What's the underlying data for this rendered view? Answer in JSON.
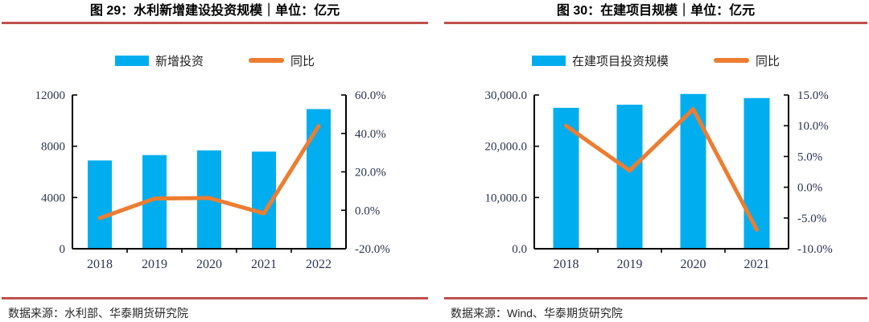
{
  "colors": {
    "bar": "#00AEEF",
    "line": "#ED7D31",
    "rule": "#C0504D",
    "axis": "#000000",
    "tick_label": "#2A3550"
  },
  "chart_data": [
    {
      "type": "bar",
      "title": "图 29：水利新增建设投资规模｜单位：亿元",
      "categories": [
        "2018",
        "2019",
        "2020",
        "2021",
        "2022"
      ],
      "series": [
        {
          "name": "新增投资",
          "type": "bar",
          "axis": "left",
          "values": [
            6890,
            7310,
            7680,
            7580,
            10900
          ]
        },
        {
          "name": "同比",
          "type": "line",
          "axis": "right",
          "values": [
            -4.1,
            6.1,
            6.4,
            -1.6,
            43.8
          ]
        }
      ],
      "left_axis": {
        "min": 0,
        "max": 12000,
        "ticks": [
          "0",
          "4000",
          "8000",
          "12000"
        ]
      },
      "right_axis": {
        "min": -20,
        "max": 60,
        "ticks": [
          "-20.0%",
          "0.0%",
          "20.0%",
          "40.0%",
          "60.0%"
        ]
      },
      "legend_position": "top",
      "grid": false,
      "source": "数据来源：水利部、华泰期货研究院"
    },
    {
      "type": "bar",
      "title": "图 30：在建项目规模｜单位：亿元",
      "categories": [
        "2018",
        "2019",
        "2020",
        "2021"
      ],
      "series": [
        {
          "name": "在建项目投资规模",
          "type": "bar",
          "axis": "left",
          "values": [
            27500,
            28100,
            30200,
            29400
          ]
        },
        {
          "name": "同比",
          "type": "line",
          "axis": "right",
          "values": [
            10.0,
            2.7,
            12.7,
            -6.9
          ]
        }
      ],
      "left_axis": {
        "min": 0,
        "max": 30000,
        "ticks": [
          "0.0",
          "10,000.0",
          "20,000.0",
          "30,000.0"
        ]
      },
      "right_axis": {
        "min": -10,
        "max": 15,
        "ticks": [
          "-10.0%",
          "-5.0%",
          "0.0%",
          "5.0%",
          "10.0%",
          "15.0%"
        ]
      },
      "legend_position": "top",
      "grid": false,
      "source": "数据来源：Wind、华泰期货研究院"
    }
  ]
}
